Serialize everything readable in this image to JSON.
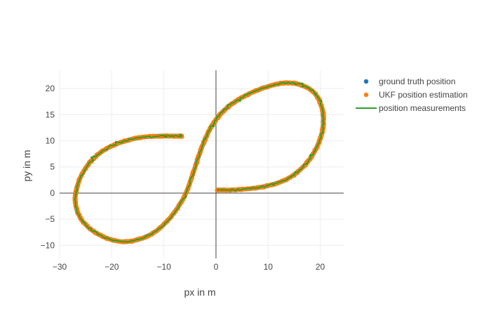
{
  "chart_data": {
    "type": "scatter",
    "title": "",
    "xlabel": "px in m",
    "ylabel": "py in m",
    "xlim": [
      -30,
      24.5
    ],
    "ylim": [
      -12.5,
      23.5
    ],
    "xticks": [
      -30,
      -20,
      -10,
      0,
      10,
      20
    ],
    "yticks": [
      -10,
      -5,
      0,
      5,
      10,
      15,
      20
    ],
    "xtick_labels": [
      "−30",
      "−20",
      "−10",
      "0",
      "10",
      "20"
    ],
    "ytick_labels": [
      "−10",
      "−5",
      "0",
      "5",
      "10",
      "15",
      "20"
    ],
    "grid": true,
    "zero_lines": true,
    "legend_position": "top-right",
    "path": {
      "x": [
        0.3,
        3.0,
        6.0,
        9.0,
        12.0,
        14.5,
        16.5,
        18.0,
        19.2,
        20.0,
        20.5,
        20.6,
        20.5,
        20.1,
        19.5,
        18.5,
        17.0,
        15.0,
        12.5,
        10.0,
        7.5,
        5.0,
        3.0,
        1.2,
        0.0,
        -1.0,
        -2.0,
        -3.0,
        -4.0,
        -5.0,
        -6.0,
        -7.5,
        -9.5,
        -12.0,
        -15.0,
        -18.0,
        -21.0,
        -23.5,
        -25.5,
        -26.6,
        -27.0,
        -26.8,
        -26.0,
        -24.5,
        -22.5,
        -20.0,
        -17.0,
        -14.0,
        -11.0,
        -9.0,
        -7.0,
        -6.6
      ],
      "y": [
        0.6,
        0.6,
        0.8,
        1.2,
        2.0,
        3.2,
        4.8,
        6.5,
        8.5,
        10.5,
        12.3,
        14.0,
        15.5,
        17.0,
        18.3,
        19.5,
        20.4,
        21.0,
        21.0,
        20.4,
        19.5,
        18.3,
        17.0,
        15.5,
        14.0,
        12.5,
        10.5,
        8.0,
        5.0,
        2.0,
        -0.5,
        -3.0,
        -5.5,
        -7.6,
        -8.9,
        -9.3,
        -8.6,
        -7.3,
        -5.5,
        -3.5,
        -1.5,
        0.5,
        3.0,
        5.5,
        7.5,
        9.0,
        10.1,
        10.7,
        10.9,
        10.9,
        10.9,
        10.9
      ]
    },
    "series": [
      {
        "name": "ground truth position",
        "mode": "markers",
        "color": "#1f77b4"
      },
      {
        "name": "UKF position estimation",
        "mode": "markers",
        "color": "#ff7f0e"
      },
      {
        "name": "position measurements",
        "mode": "lines",
        "color": "#2ca02c"
      }
    ]
  }
}
